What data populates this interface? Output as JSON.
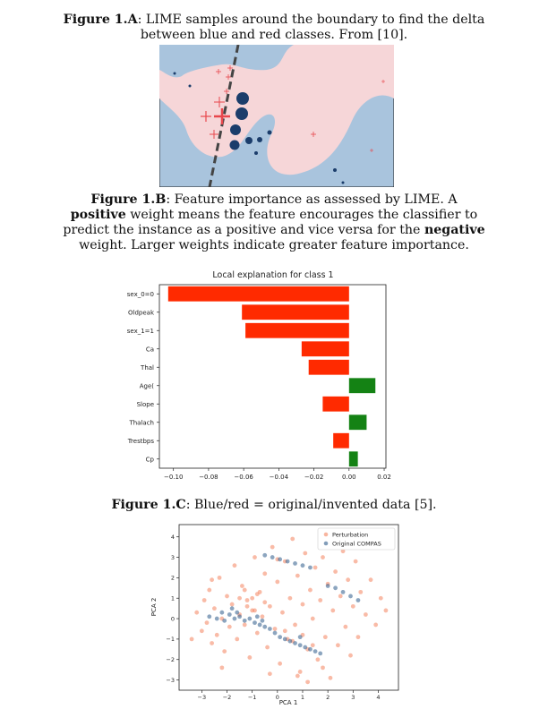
{
  "figure_a": {
    "caption_label": "Figure 1.A",
    "caption_text": ": LIME samples around the boundary to find the delta between blue and red classes. From [10].",
    "colors": {
      "background": "#a9c4dd",
      "region": "#f6d6d8",
      "blue": "#1b3d6b",
      "red": "#e8474c"
    }
  },
  "figure_b": {
    "caption_label": "Figure 1.B",
    "caption_part1": ": Feature importance as assessed by LIME. A ",
    "caption_bold1": "positive",
    "caption_part2": " weight means the feature encourages the classifier to predict the instance as a positive and vice versa for the ",
    "caption_bold2": "negative",
    "caption_part3": " weight. Larger weights indicate greater feature importance."
  },
  "figure_c": {
    "caption_label": "Figure 1.C",
    "caption_text": ": Blue/red = original/invented data [5]."
  },
  "chart_data": [
    {
      "type": "bar",
      "orientation": "horizontal",
      "title": "Local explanation for class 1",
      "categories": [
        "sex_0=0",
        "Oldpeak",
        "sex_1=1",
        "Ca",
        "Thal",
        "Age(",
        "Slope",
        "Thalach",
        "Trestbps",
        "Cp"
      ],
      "values": [
        -0.103,
        -0.061,
        -0.059,
        -0.027,
        -0.023,
        0.015,
        -0.015,
        0.01,
        -0.009,
        0.005
      ],
      "xlim": [
        -0.108,
        0.021
      ],
      "xticks": [
        -0.1,
        -0.08,
        -0.06,
        -0.04,
        -0.02,
        0.0,
        0.02
      ],
      "xtick_labels": [
        "−0.10",
        "−0.08",
        "−0.06",
        "−0.04",
        "−0.02",
        "0.00",
        "0.02"
      ],
      "colors": {
        "negative": "#ff2a00",
        "positive": "#148214"
      }
    },
    {
      "type": "scatter",
      "xlabel": "PCA 1",
      "ylabel": "PCA 2",
      "xlim": [
        -3.9,
        4.8
      ],
      "ylim": [
        -3.5,
        4.6
      ],
      "xticks": [
        -3,
        -2,
        -1,
        0,
        1,
        2,
        3,
        4
      ],
      "yticks": [
        -3,
        -2,
        -1,
        0,
        1,
        2,
        3,
        4
      ],
      "xtick_labels": [
        "−3",
        "−2",
        "−1",
        "0",
        "1",
        "2",
        "3",
        "4"
      ],
      "ytick_labels": [
        "−3",
        "−2",
        "−1",
        "0",
        "1",
        "2",
        "3",
        "4"
      ],
      "legend_location": "top-right",
      "series": [
        {
          "name": "Perturbation",
          "color": "#f4845f",
          "points": [
            [
              -3.4,
              -1.0
            ],
            [
              -3.2,
              0.3
            ],
            [
              -3.0,
              -0.6
            ],
            [
              -2.9,
              0.9
            ],
            [
              -2.8,
              -0.2
            ],
            [
              -2.7,
              1.4
            ],
            [
              -2.6,
              -1.2
            ],
            [
              -2.5,
              0.5
            ],
            [
              -2.4,
              -0.8
            ],
            [
              -2.3,
              2.0
            ],
            [
              -2.2,
              0.0
            ],
            [
              -2.1,
              -1.6
            ],
            [
              -2.0,
              1.1
            ],
            [
              -1.9,
              -0.4
            ],
            [
              -1.8,
              0.7
            ],
            [
              -1.7,
              2.6
            ],
            [
              -1.6,
              -1.0
            ],
            [
              -1.5,
              0.2
            ],
            [
              -1.4,
              1.6
            ],
            [
              -1.3,
              -0.3
            ],
            [
              -1.2,
              0.9
            ],
            [
              -1.1,
              -1.9
            ],
            [
              -1.0,
              0.4
            ],
            [
              -0.9,
              3.0
            ],
            [
              -0.8,
              -0.7
            ],
            [
              -0.7,
              1.3
            ],
            [
              -0.6,
              0.1
            ],
            [
              -0.5,
              2.2
            ],
            [
              -0.4,
              -1.4
            ],
            [
              -0.3,
              0.6
            ],
            [
              -0.2,
              3.5
            ],
            [
              -0.1,
              -0.5
            ],
            [
              0.0,
              1.8
            ],
            [
              0.1,
              -2.2
            ],
            [
              0.2,
              0.3
            ],
            [
              0.3,
              2.8
            ],
            [
              0.4,
              -1.0
            ],
            [
              0.5,
              1.0
            ],
            [
              0.6,
              3.9
            ],
            [
              0.7,
              -0.3
            ],
            [
              0.8,
              2.1
            ],
            [
              0.9,
              -2.6
            ],
            [
              1.0,
              0.7
            ],
            [
              1.1,
              3.2
            ],
            [
              1.2,
              -1.5
            ],
            [
              1.3,
              1.4
            ],
            [
              1.4,
              0.0
            ],
            [
              1.5,
              2.5
            ],
            [
              1.6,
              -2.0
            ],
            [
              1.7,
              0.9
            ],
            [
              1.8,
              3.0
            ],
            [
              1.9,
              -0.9
            ],
            [
              2.0,
              1.7
            ],
            [
              2.1,
              -2.9
            ],
            [
              2.2,
              0.4
            ],
            [
              2.3,
              2.3
            ],
            [
              2.4,
              -1.3
            ],
            [
              2.5,
              1.1
            ],
            [
              2.6,
              3.3
            ],
            [
              2.7,
              -0.4
            ],
            [
              2.8,
              1.9
            ],
            [
              2.9,
              -1.8
            ],
            [
              3.0,
              0.6
            ],
            [
              3.1,
              2.8
            ],
            [
              3.2,
              -0.9
            ],
            [
              3.3,
              1.3
            ],
            [
              3.5,
              0.2
            ],
            [
              3.7,
              1.9
            ],
            [
              3.9,
              -0.3
            ],
            [
              4.1,
              1.0
            ],
            [
              4.3,
              0.4
            ],
            [
              -1.0,
              1.0
            ],
            [
              -0.8,
              1.2
            ],
            [
              -1.2,
              0.6
            ],
            [
              -0.5,
              0.8
            ],
            [
              -1.5,
              1.0
            ],
            [
              -0.9,
              0.4
            ],
            [
              -1.3,
              1.4
            ],
            [
              0.3,
              -0.6
            ],
            [
              0.6,
              -1.1
            ],
            [
              1.0,
              -0.8
            ],
            [
              1.4,
              -1.3
            ],
            [
              0.8,
              -2.8
            ],
            [
              1.8,
              -2.4
            ],
            [
              -2.2,
              -2.4
            ],
            [
              -2.6,
              1.9
            ],
            [
              0.0,
              2.9
            ],
            [
              2.0,
              3.6
            ],
            [
              -0.3,
              -2.7
            ],
            [
              1.2,
              -3.1
            ]
          ]
        },
        {
          "name": "Original COMPAS",
          "color": "#2e5b8a",
          "points": [
            [
              -2.7,
              0.1
            ],
            [
              -2.4,
              0.0
            ],
            [
              -2.1,
              -0.1
            ],
            [
              -1.9,
              0.2
            ],
            [
              -1.7,
              0.0
            ],
            [
              -1.5,
              0.1
            ],
            [
              -1.3,
              -0.1
            ],
            [
              -1.1,
              0.0
            ],
            [
              -0.9,
              -0.2
            ],
            [
              -0.7,
              -0.3
            ],
            [
              -0.5,
              -0.4
            ],
            [
              -0.3,
              -0.5
            ],
            [
              -0.1,
              -0.7
            ],
            [
              0.1,
              -0.9
            ],
            [
              0.3,
              -1.0
            ],
            [
              0.5,
              -1.1
            ],
            [
              0.7,
              -1.2
            ],
            [
              0.9,
              -1.3
            ],
            [
              1.1,
              -1.4
            ],
            [
              1.3,
              -1.5
            ],
            [
              1.5,
              -1.6
            ],
            [
              1.7,
              -1.7
            ],
            [
              -0.5,
              3.1
            ],
            [
              -0.2,
              3.0
            ],
            [
              0.1,
              2.9
            ],
            [
              0.4,
              2.8
            ],
            [
              0.7,
              2.7
            ],
            [
              1.0,
              2.6
            ],
            [
              1.3,
              2.5
            ],
            [
              2.0,
              1.6
            ],
            [
              2.3,
              1.5
            ],
            [
              2.6,
              1.3
            ],
            [
              2.9,
              1.1
            ],
            [
              3.2,
              0.9
            ],
            [
              -1.8,
              0.5
            ],
            [
              -1.6,
              0.3
            ],
            [
              -2.2,
              0.3
            ],
            [
              -0.8,
              0.1
            ],
            [
              -0.6,
              -0.1
            ],
            [
              0.9,
              -0.9
            ]
          ]
        }
      ]
    }
  ]
}
